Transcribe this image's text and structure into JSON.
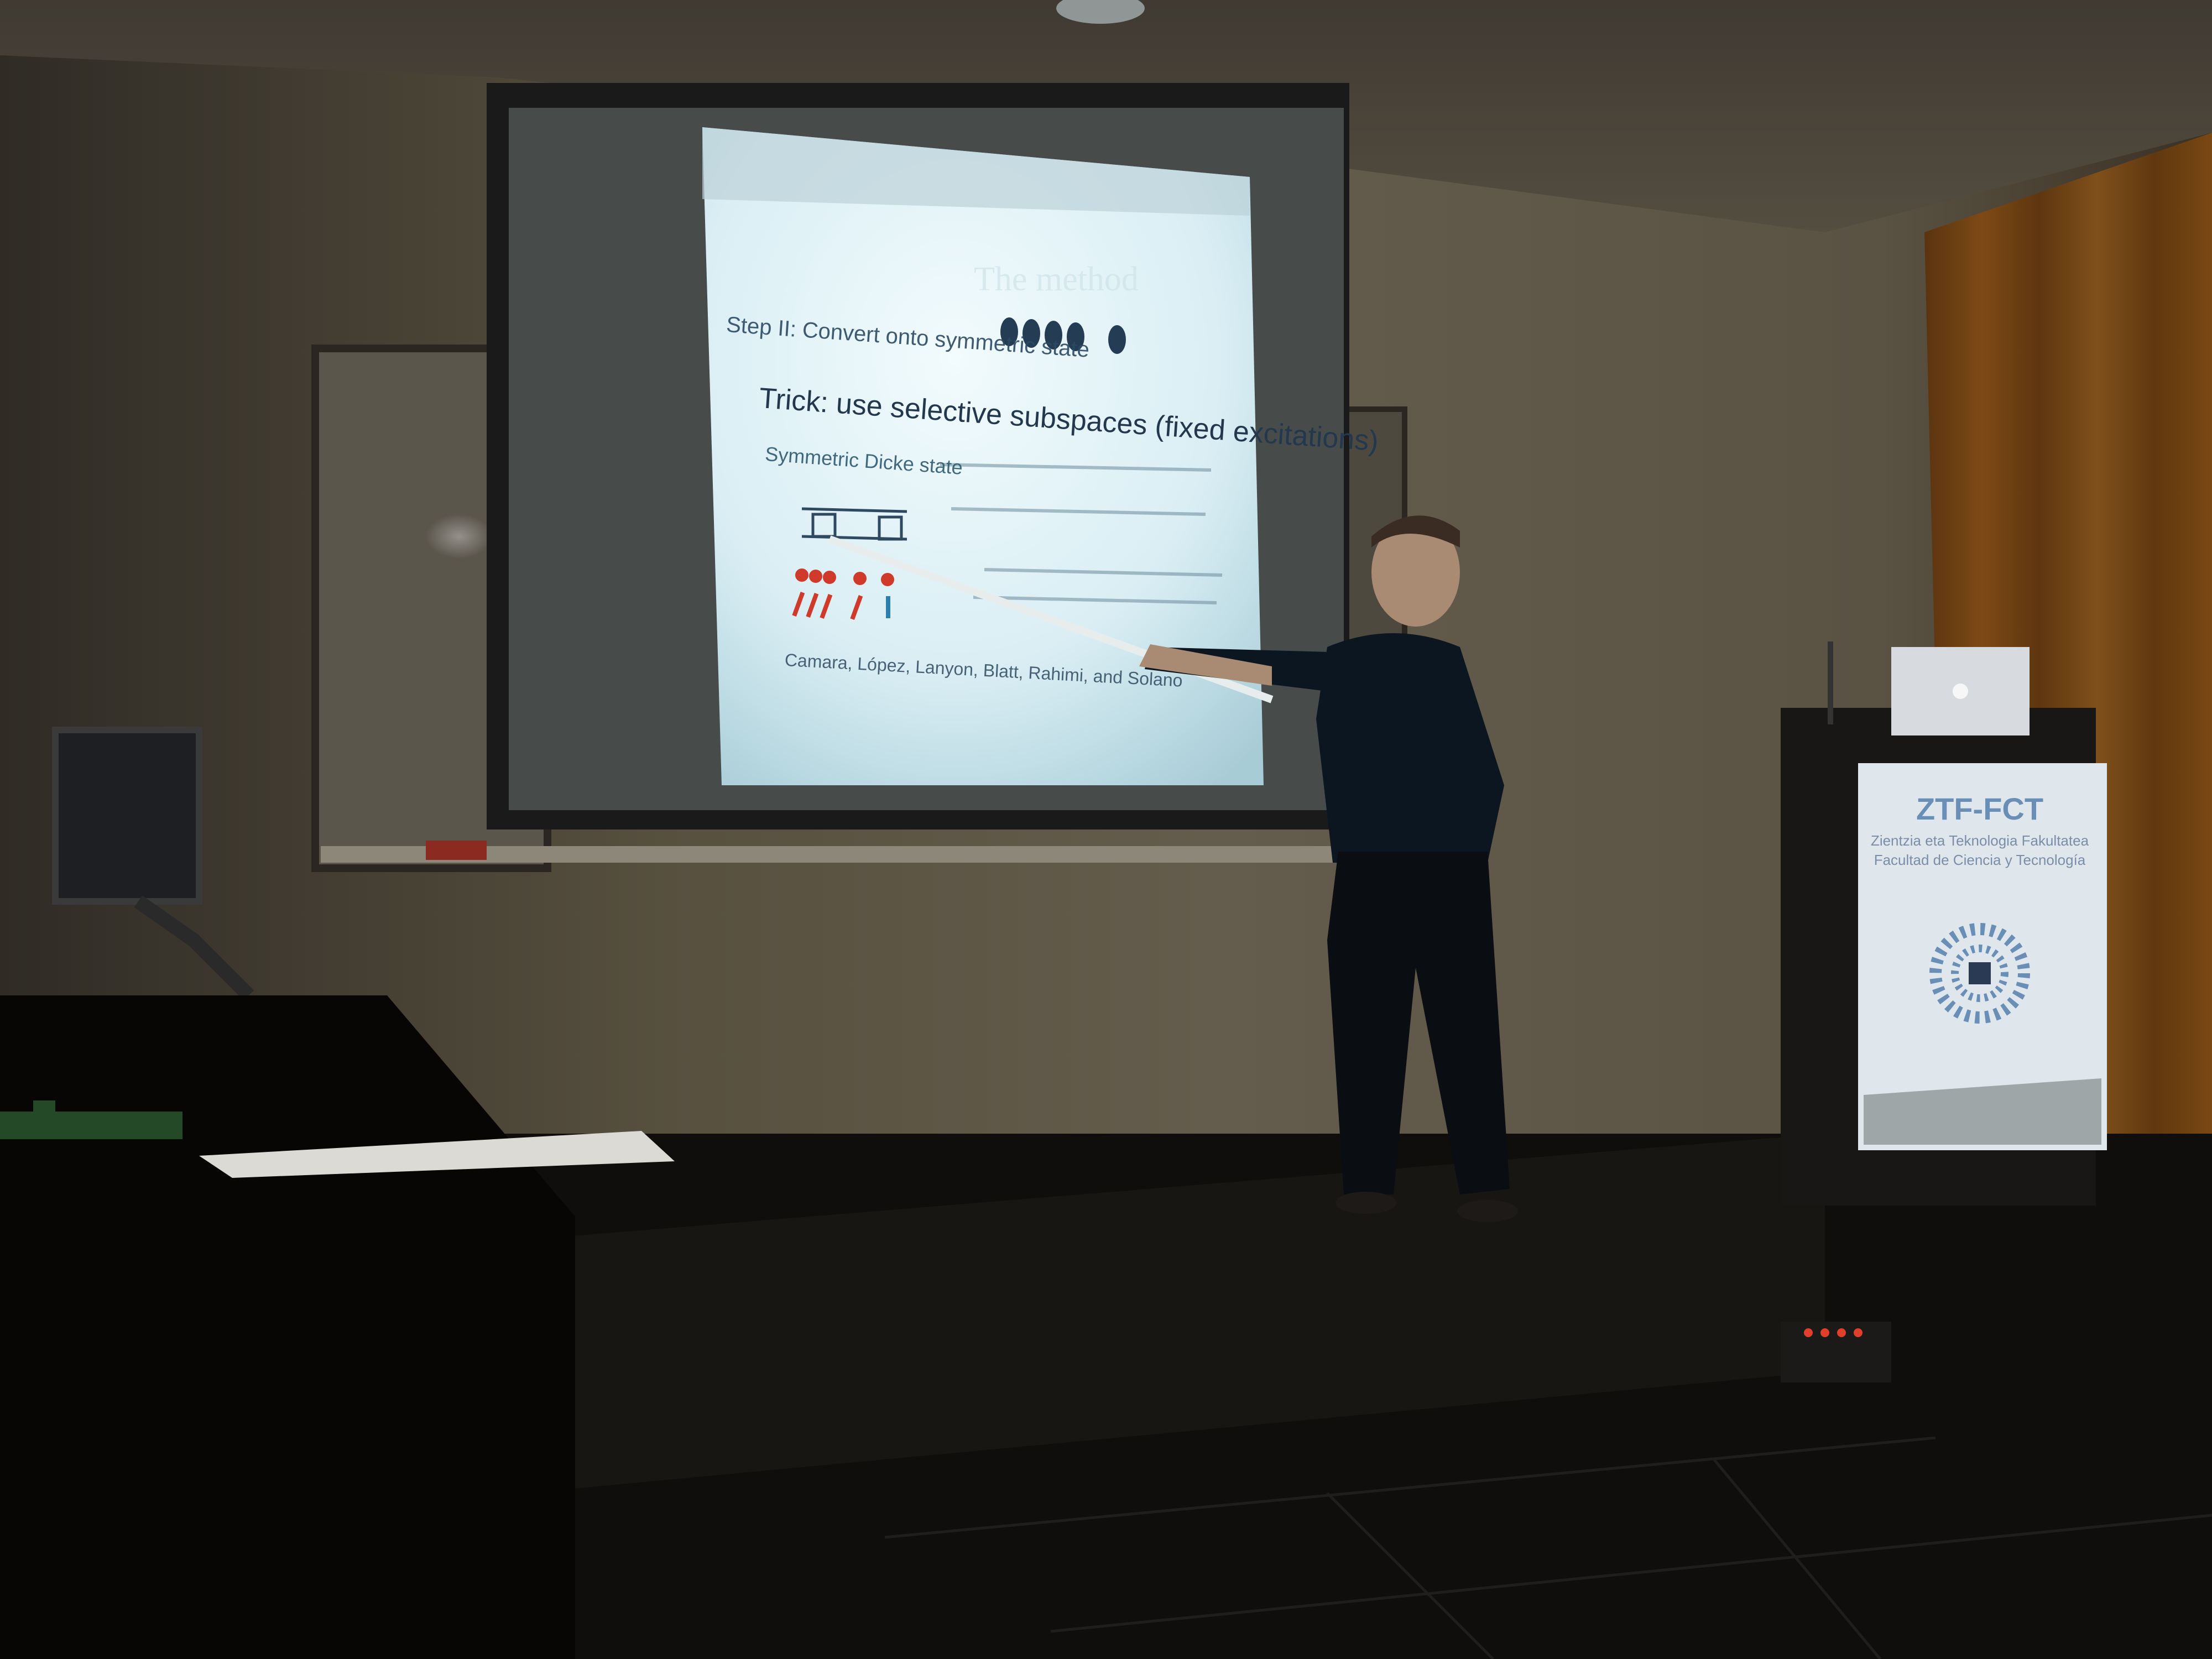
{
  "slide": {
    "title": "The method",
    "step_text": "Step II: Convert onto symmetric state",
    "trick_text": "Trick: use selective subspaces (fixed excitations)",
    "sub_text": "Symmetric Dicke state",
    "credit_text": "Camara, López, Lanyon, Blatt, Rahimi, and Solano"
  },
  "banner": {
    "title": "ZTF-FCT",
    "line1": "Zientzia eta Teknologia Fakultatea",
    "line2": "Facultad de Ciencia y Tecnología"
  },
  "colors": {
    "wall": "#5c5548",
    "projected_slide": "#dff0f4",
    "curtain": "#7a4512",
    "banner_blue": "#6a8fb7",
    "floor": "#0c0c0c"
  },
  "icons": {
    "laptop_logo": "apple-logo-icon",
    "banner_logo": "dotted-sunburst-logo"
  }
}
